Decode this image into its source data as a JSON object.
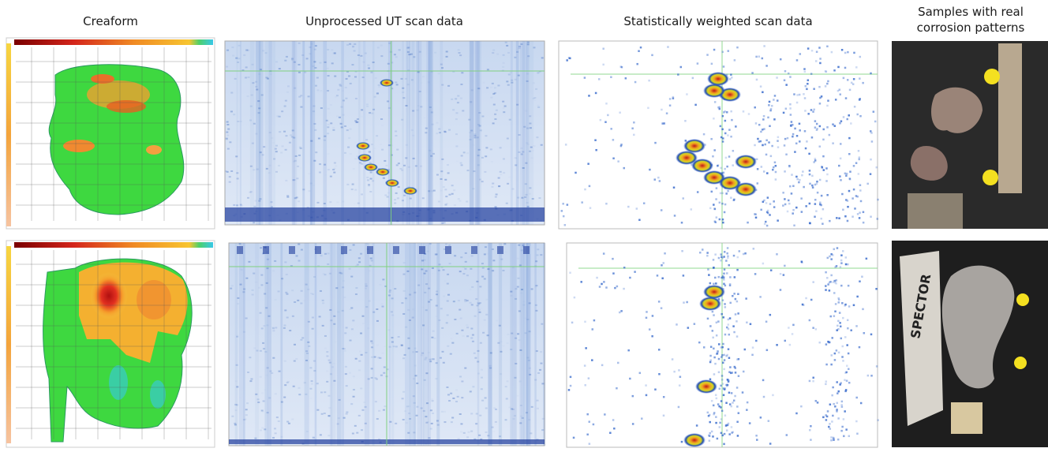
{
  "columns": [
    {
      "title": [
        "Creaform"
      ]
    },
    {
      "title": [
        "Unprocessed UT scan data"
      ]
    },
    {
      "title": [
        "Statistically weighted scan data"
      ]
    },
    {
      "title": [
        "Samples with real",
        "corrosion patterns"
      ]
    }
  ],
  "photo_text": "SPECTOR"
}
